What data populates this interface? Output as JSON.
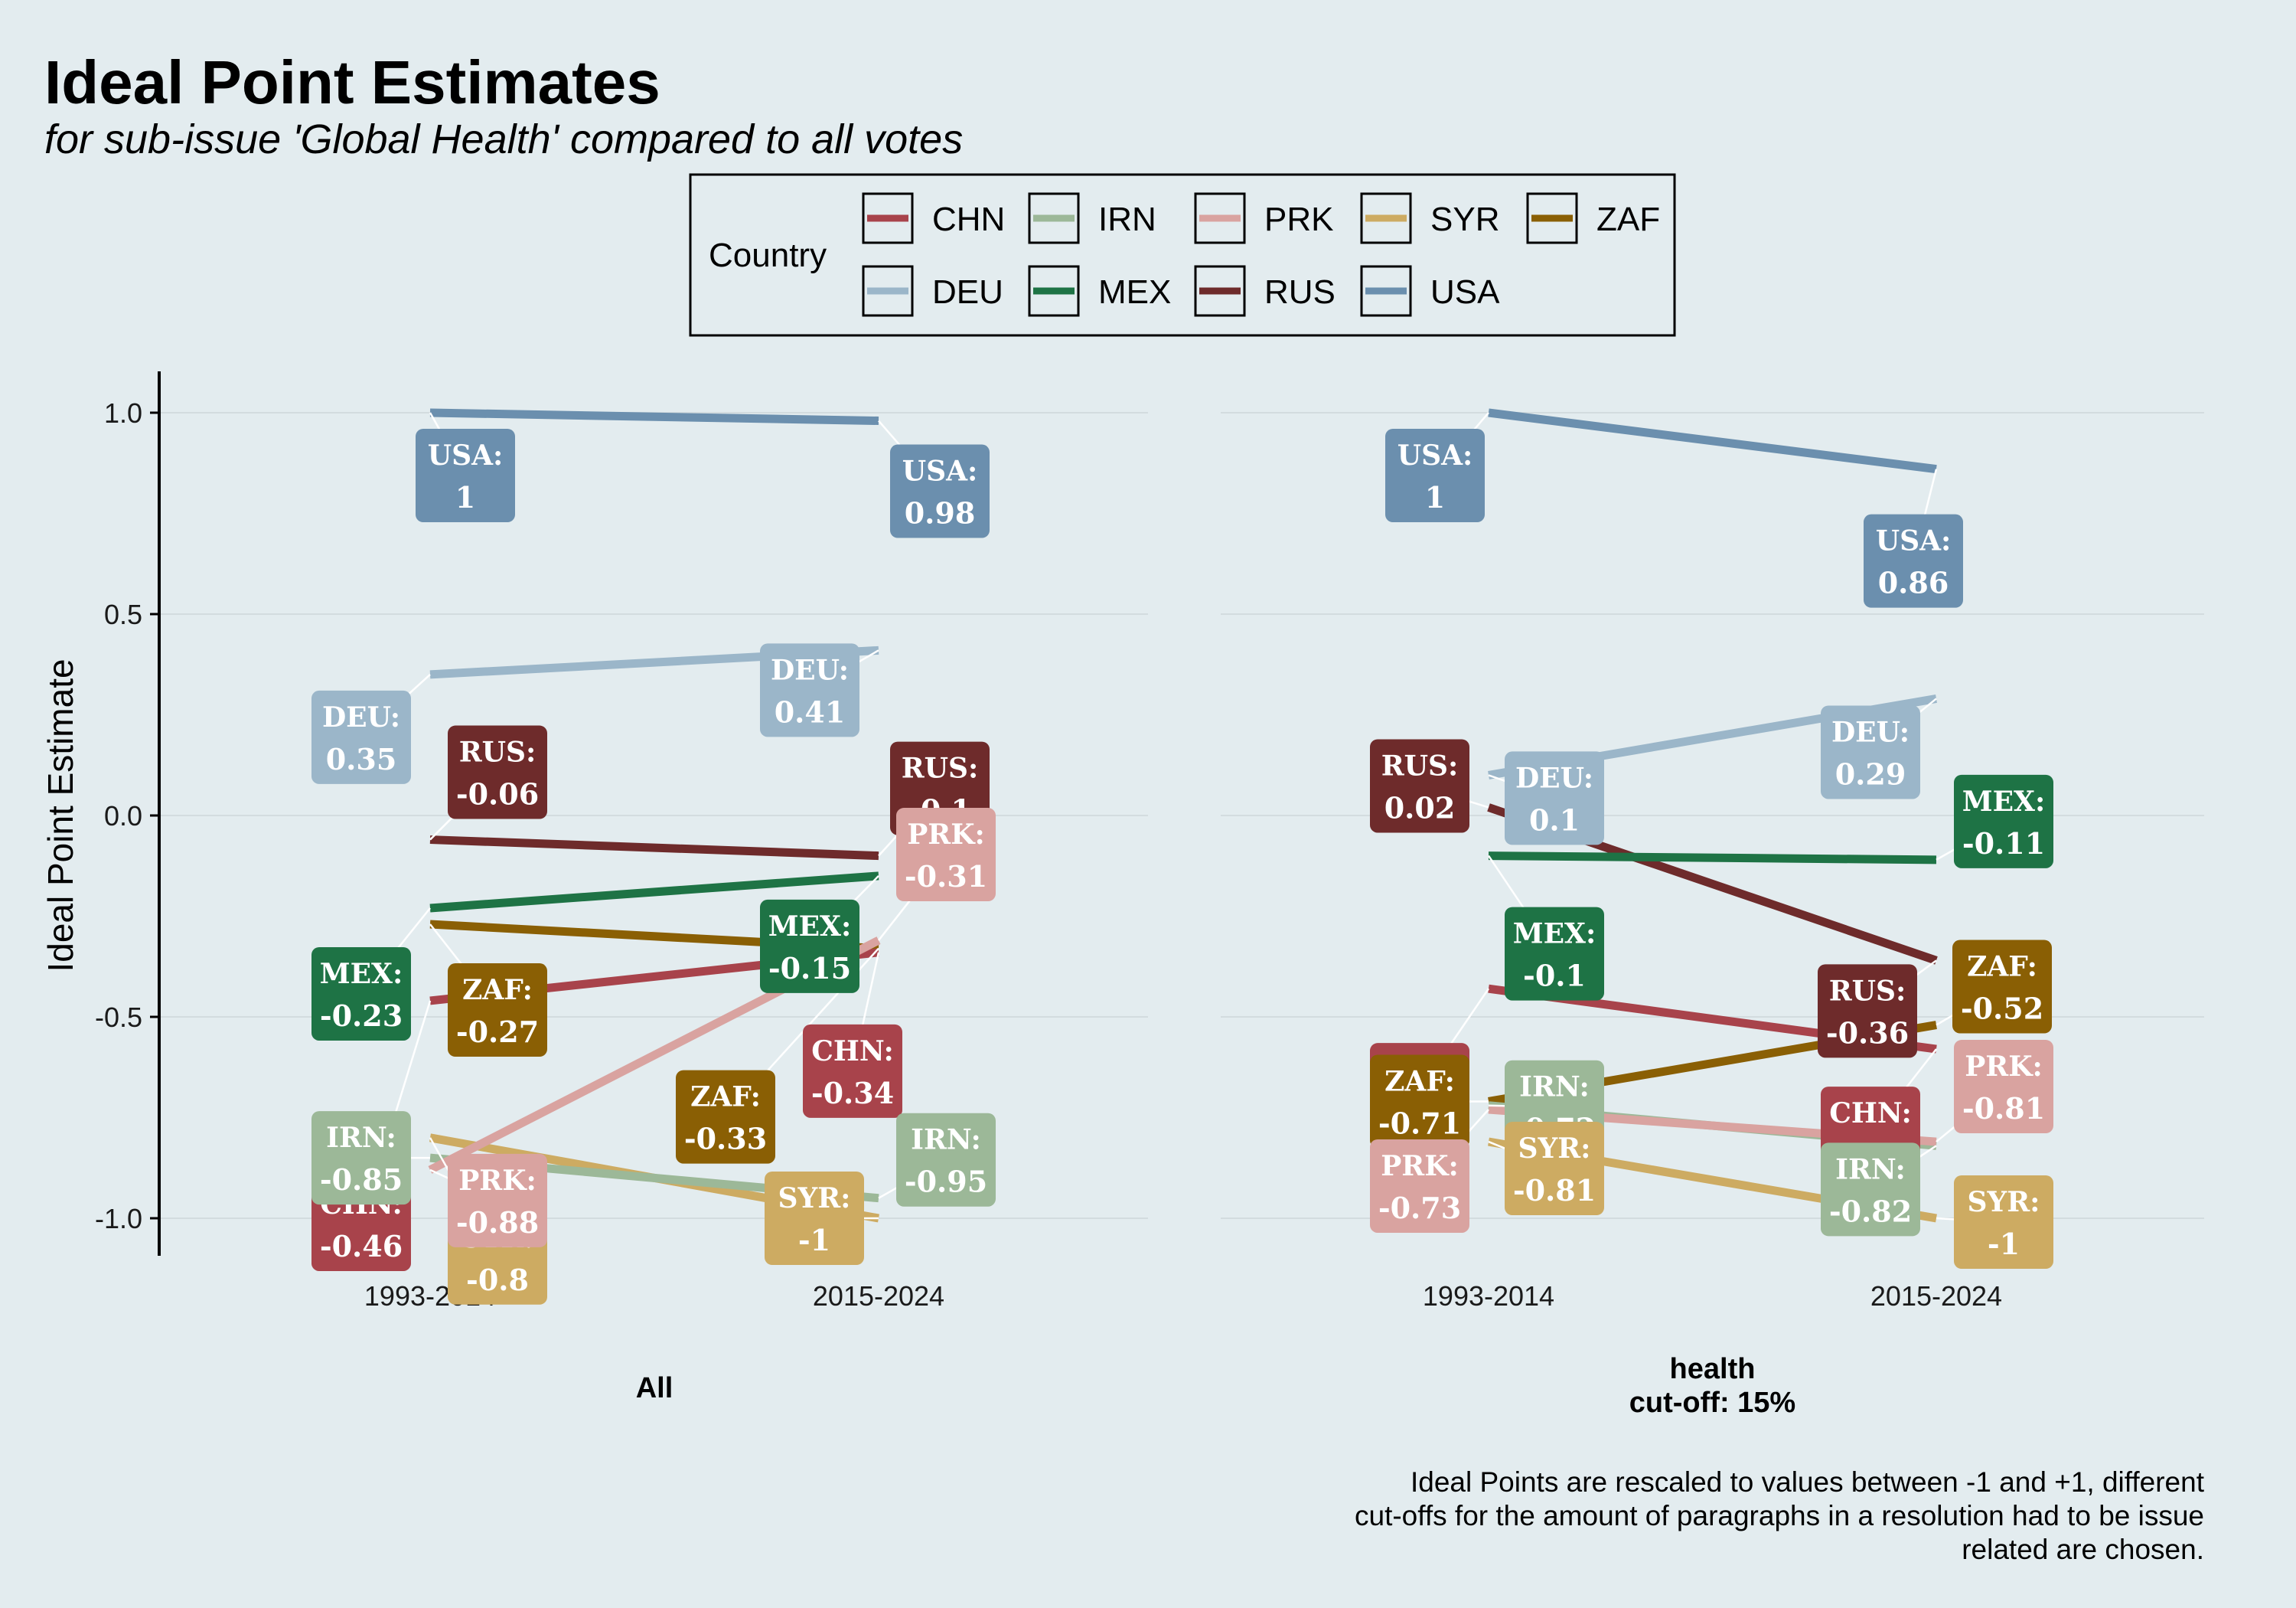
{
  "title": "Ideal Point Estimates",
  "subtitle": "for sub-issue 'Global Health' compared to all votes",
  "caption": [
    "Ideal Points are rescaled to values between -1 and +1, different",
    "cut-offs for the amount of paragraphs in a resolution had to be issue",
    "related are chosen."
  ],
  "legend": {
    "title": "Country",
    "position": "top",
    "items": [
      {
        "name": "CHN",
        "color": "#A8434B"
      },
      {
        "name": "IRN",
        "color": "#9CB898"
      },
      {
        "name": "PRK",
        "color": "#D9A3A0"
      },
      {
        "name": "SYR",
        "color": "#CDAB62"
      },
      {
        "name": "ZAF",
        "color": "#8A5F04"
      },
      {
        "name": "DEU",
        "color": "#9BB6C9"
      },
      {
        "name": "MEX",
        "color": "#1E7345"
      },
      {
        "name": "RUS",
        "color": "#6E2B2B"
      },
      {
        "name": "USA",
        "color": "#6B8FAE"
      }
    ]
  },
  "chart_data": {
    "type": "line",
    "ylabel": "Ideal Point Estimate",
    "ylim": [
      -1.1,
      1.1
    ],
    "yticks": [
      1.0,
      0.5,
      0.0,
      -0.5,
      -1.0
    ],
    "ytick_labels": [
      "1.0",
      "0.5",
      "0.0",
      "-0.5",
      "-1.0"
    ],
    "categories": [
      "1993-2014",
      "2015-2024"
    ],
    "grid": true,
    "panels": [
      {
        "name": "All",
        "strip_lines": [
          "All"
        ],
        "series": [
          {
            "name": "USA",
            "values": [
              1,
              0.98
            ]
          },
          {
            "name": "DEU",
            "values": [
              0.35,
              0.41
            ]
          },
          {
            "name": "RUS",
            "values": [
              -0.06,
              -0.1
            ]
          },
          {
            "name": "MEX",
            "values": [
              -0.23,
              -0.15
            ]
          },
          {
            "name": "ZAF",
            "values": [
              -0.27,
              -0.33
            ]
          },
          {
            "name": "CHN",
            "values": [
              -0.46,
              -0.34
            ]
          },
          {
            "name": "SYR",
            "values": [
              -0.8,
              -1
            ]
          },
          {
            "name": "IRN",
            "values": [
              -0.85,
              -0.95
            ]
          },
          {
            "name": "PRK",
            "values": [
              -0.88,
              -0.31
            ]
          }
        ]
      },
      {
        "name": "health cut-off: 15%",
        "strip_lines": [
          "health",
          "cut-off: 15%"
        ],
        "series": [
          {
            "name": "USA",
            "values": [
              1,
              0.86
            ]
          },
          {
            "name": "DEU",
            "values": [
              0.1,
              0.29
            ]
          },
          {
            "name": "RUS",
            "values": [
              0.02,
              -0.36
            ]
          },
          {
            "name": "MEX",
            "values": [
              -0.1,
              -0.11
            ]
          },
          {
            "name": "CHN",
            "values": [
              -0.43,
              -0.58
            ]
          },
          {
            "name": "ZAF",
            "values": [
              -0.71,
              -0.52
            ]
          },
          {
            "name": "IRN",
            "values": [
              -0.72,
              -0.82
            ]
          },
          {
            "name": "PRK",
            "values": [
              -0.73,
              -0.81
            ]
          },
          {
            "name": "SYR",
            "values": [
              -0.81,
              -1
            ]
          }
        ]
      }
    ]
  }
}
